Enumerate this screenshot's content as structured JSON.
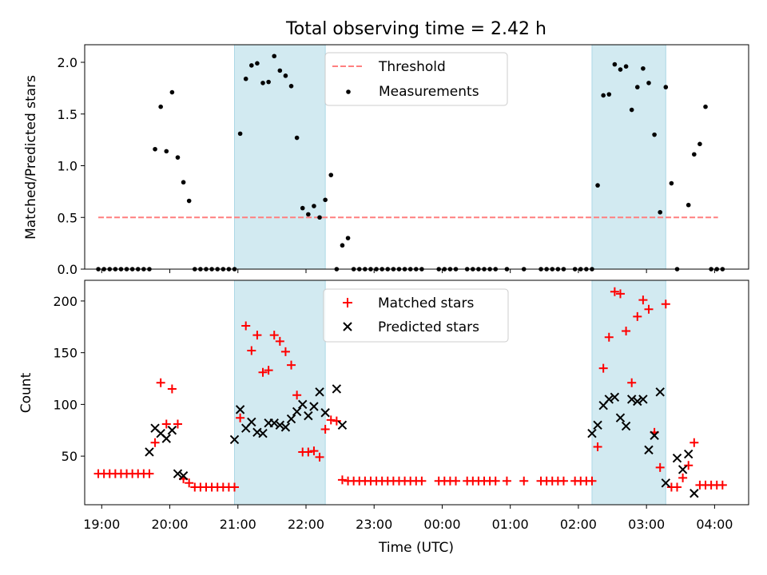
{
  "title": "Total observing time = 2.42 h",
  "colors": {
    "shade": "#add8e6",
    "threshold": "#ff7f7f",
    "matched": "#ff0000",
    "predicted": "#000000",
    "measurement": "#000000"
  },
  "chart_data": [
    {
      "type": "scatter",
      "ylabel": "Matched/Predicted stars",
      "xlabel": "",
      "xlim": [
        "18:45",
        "04:30"
      ],
      "ylim": [
        0,
        2.17
      ],
      "yticks": [
        "0.0",
        "0.5",
        "1.0",
        "1.5",
        "2.0"
      ],
      "shaded_intervals": [
        [
          "20:57",
          "22:17"
        ],
        [
          "02:12",
          "03:17"
        ]
      ],
      "legend": {
        "position": "top-center",
        "entries": [
          "Threshold",
          "Measurements"
        ]
      },
      "threshold": {
        "name": "Threshold",
        "value": 0.5,
        "x": [
          "18:57",
          "04:03"
        ]
      },
      "series": [
        {
          "name": "Measurements",
          "points": [
            [
              "18:57",
              0
            ],
            [
              "19:02",
              0
            ],
            [
              "19:07",
              0
            ],
            [
              "19:12",
              0
            ],
            [
              "19:17",
              0
            ],
            [
              "19:22",
              0
            ],
            [
              "19:27",
              0
            ],
            [
              "19:32",
              0
            ],
            [
              "19:37",
              0
            ],
            [
              "19:42",
              0
            ],
            [
              "19:47",
              1.16
            ],
            [
              "19:52",
              1.57
            ],
            [
              "19:57",
              1.14
            ],
            [
              "20:02",
              1.71
            ],
            [
              "20:07",
              1.08
            ],
            [
              "20:12",
              0.84
            ],
            [
              "20:17",
              0.66
            ],
            [
              "20:22",
              0
            ],
            [
              "20:27",
              0
            ],
            [
              "20:32",
              0
            ],
            [
              "20:37",
              0
            ],
            [
              "20:42",
              0
            ],
            [
              "20:47",
              0
            ],
            [
              "20:52",
              0
            ],
            [
              "20:57",
              0
            ],
            [
              "21:02",
              1.31
            ],
            [
              "21:07",
              1.84
            ],
            [
              "21:12",
              1.97
            ],
            [
              "21:17",
              1.99
            ],
            [
              "21:22",
              1.8
            ],
            [
              "21:27",
              1.81
            ],
            [
              "21:32",
              2.06
            ],
            [
              "21:37",
              1.92
            ],
            [
              "21:42",
              1.87
            ],
            [
              "21:47",
              1.77
            ],
            [
              "21:52",
              1.27
            ],
            [
              "21:57",
              0.59
            ],
            [
              "22:02",
              0.53
            ],
            [
              "22:07",
              0.61
            ],
            [
              "22:12",
              0.5
            ],
            [
              "22:17",
              0.67
            ],
            [
              "22:22",
              0.91
            ],
            [
              "22:27",
              0
            ],
            [
              "22:32",
              0.23
            ],
            [
              "22:37",
              0.3
            ],
            [
              "22:42",
              0
            ],
            [
              "22:47",
              0
            ],
            [
              "22:52",
              0
            ],
            [
              "22:57",
              0
            ],
            [
              "23:02",
              0
            ],
            [
              "23:07",
              0
            ],
            [
              "23:12",
              0
            ],
            [
              "23:17",
              0
            ],
            [
              "23:22",
              0
            ],
            [
              "23:27",
              0
            ],
            [
              "23:32",
              0
            ],
            [
              "23:37",
              0
            ],
            [
              "23:42",
              0
            ],
            [
              "23:57",
              0
            ],
            [
              "00:02",
              0
            ],
            [
              "00:07",
              0
            ],
            [
              "00:12",
              0
            ],
            [
              "00:22",
              0
            ],
            [
              "00:27",
              0
            ],
            [
              "00:32",
              0
            ],
            [
              "00:37",
              0
            ],
            [
              "00:42",
              0
            ],
            [
              "00:47",
              0
            ],
            [
              "00:57",
              0
            ],
            [
              "01:12",
              0
            ],
            [
              "01:27",
              0
            ],
            [
              "01:32",
              0
            ],
            [
              "01:37",
              0
            ],
            [
              "01:42",
              0
            ],
            [
              "01:47",
              0
            ],
            [
              "01:57",
              0
            ],
            [
              "02:02",
              0
            ],
            [
              "02:07",
              0
            ],
            [
              "02:12",
              0
            ],
            [
              "02:17",
              0.81
            ],
            [
              "02:22",
              1.68
            ],
            [
              "02:27",
              1.69
            ],
            [
              "02:32",
              1.98
            ],
            [
              "02:37",
              1.93
            ],
            [
              "02:42",
              1.96
            ],
            [
              "02:47",
              1.54
            ],
            [
              "02:52",
              1.76
            ],
            [
              "02:57",
              1.94
            ],
            [
              "03:02",
              1.8
            ],
            [
              "03:07",
              1.3
            ],
            [
              "03:12",
              0.55
            ],
            [
              "03:17",
              1.76
            ],
            [
              "03:22",
              0.83
            ],
            [
              "03:27",
              0
            ],
            [
              "03:37",
              0.62
            ],
            [
              "03:42",
              1.11
            ],
            [
              "03:47",
              1.21
            ],
            [
              "03:52",
              1.57
            ],
            [
              "03:57",
              0
            ],
            [
              "04:02",
              0
            ],
            [
              "04:07",
              0
            ]
          ]
        }
      ]
    },
    {
      "type": "scatter",
      "ylabel": "Count",
      "xlabel": "Time (UTC)",
      "xlim": [
        "18:45",
        "04:30"
      ],
      "ylim": [
        3,
        220
      ],
      "yticks": [
        "50",
        "100",
        "150",
        "200"
      ],
      "xticks": [
        "19:00",
        "20:00",
        "21:00",
        "22:00",
        "23:00",
        "00:00",
        "01:00",
        "02:00",
        "03:00",
        "04:00"
      ],
      "shaded_intervals": [
        [
          "20:57",
          "22:17"
        ],
        [
          "02:12",
          "03:17"
        ]
      ],
      "legend": {
        "position": "top-center",
        "entries": [
          "Matched stars",
          "Predicted stars"
        ]
      },
      "series": [
        {
          "name": "Matched stars",
          "marker": "plus",
          "points": [
            [
              "18:57",
              33
            ],
            [
              "19:02",
              33
            ],
            [
              "19:07",
              33
            ],
            [
              "19:12",
              33
            ],
            [
              "19:17",
              33
            ],
            [
              "19:22",
              33
            ],
            [
              "19:27",
              33
            ],
            [
              "19:32",
              33
            ],
            [
              "19:37",
              33
            ],
            [
              "19:42",
              33
            ],
            [
              "19:47",
              63
            ],
            [
              "19:52",
              121
            ],
            [
              "19:57",
              81
            ],
            [
              "20:02",
              115
            ],
            [
              "20:07",
              81
            ],
            [
              "20:12",
              28
            ],
            [
              "20:17",
              24
            ],
            [
              "20:22",
              20
            ],
            [
              "20:27",
              20
            ],
            [
              "20:32",
              20
            ],
            [
              "20:37",
              20
            ],
            [
              "20:42",
              20
            ],
            [
              "20:47",
              20
            ],
            [
              "20:52",
              20
            ],
            [
              "20:57",
              20
            ],
            [
              "21:02",
              87
            ],
            [
              "21:07",
              176
            ],
            [
              "21:12",
              152
            ],
            [
              "21:17",
              167
            ],
            [
              "21:22",
              131
            ],
            [
              "21:27",
              133
            ],
            [
              "21:32",
              167
            ],
            [
              "21:37",
              161
            ],
            [
              "21:42",
              151
            ],
            [
              "21:47",
              138
            ],
            [
              "21:52",
              109
            ],
            [
              "21:57",
              54
            ],
            [
              "22:02",
              54
            ],
            [
              "22:07",
              55
            ],
            [
              "22:12",
              49
            ],
            [
              "22:17",
              76
            ],
            [
              "22:22",
              85
            ],
            [
              "22:27",
              84
            ],
            [
              "22:32",
              27
            ],
            [
              "22:37",
              26
            ],
            [
              "22:42",
              26
            ],
            [
              "22:47",
              26
            ],
            [
              "22:52",
              26
            ],
            [
              "22:57",
              26
            ],
            [
              "23:02",
              26
            ],
            [
              "23:07",
              26
            ],
            [
              "23:12",
              26
            ],
            [
              "23:17",
              26
            ],
            [
              "23:22",
              26
            ],
            [
              "23:27",
              26
            ],
            [
              "23:32",
              26
            ],
            [
              "23:37",
              26
            ],
            [
              "23:42",
              26
            ],
            [
              "23:57",
              26
            ],
            [
              "00:02",
              26
            ],
            [
              "00:07",
              26
            ],
            [
              "00:12",
              26
            ],
            [
              "00:22",
              26
            ],
            [
              "00:27",
              26
            ],
            [
              "00:32",
              26
            ],
            [
              "00:37",
              26
            ],
            [
              "00:42",
              26
            ],
            [
              "00:47",
              26
            ],
            [
              "00:57",
              26
            ],
            [
              "01:12",
              26
            ],
            [
              "01:27",
              26
            ],
            [
              "01:32",
              26
            ],
            [
              "01:37",
              26
            ],
            [
              "01:42",
              26
            ],
            [
              "01:47",
              26
            ],
            [
              "01:57",
              26
            ],
            [
              "02:02",
              26
            ],
            [
              "02:07",
              26
            ],
            [
              "02:12",
              26
            ],
            [
              "02:17",
              59
            ],
            [
              "02:22",
              135
            ],
            [
              "02:27",
              165
            ],
            [
              "02:32",
              209
            ],
            [
              "02:37",
              207
            ],
            [
              "02:42",
              171
            ],
            [
              "02:47",
              121
            ],
            [
              "02:52",
              185
            ],
            [
              "02:57",
              201
            ],
            [
              "03:02",
              192
            ],
            [
              "03:07",
              73
            ],
            [
              "03:12",
              39
            ],
            [
              "03:17",
              197
            ],
            [
              "03:22",
              20
            ],
            [
              "03:27",
              20
            ],
            [
              "03:32",
              29
            ],
            [
              "03:37",
              41
            ],
            [
              "03:42",
              63
            ],
            [
              "03:47",
              22
            ],
            [
              "03:52",
              22
            ],
            [
              "03:57",
              22
            ],
            [
              "04:02",
              22
            ],
            [
              "04:07",
              22
            ]
          ]
        },
        {
          "name": "Predicted stars",
          "marker": "cross",
          "points": [
            [
              "19:42",
              54
            ],
            [
              "19:47",
              77
            ],
            [
              "19:52",
              72
            ],
            [
              "19:57",
              67
            ],
            [
              "20:02",
              75
            ],
            [
              "20:07",
              33
            ],
            [
              "20:12",
              31
            ],
            [
              "20:57",
              66
            ],
            [
              "21:02",
              95
            ],
            [
              "21:07",
              77
            ],
            [
              "21:12",
              83
            ],
            [
              "21:17",
              73
            ],
            [
              "21:22",
              72
            ],
            [
              "21:27",
              82
            ],
            [
              "21:32",
              82
            ],
            [
              "21:37",
              80
            ],
            [
              "21:42",
              78
            ],
            [
              "21:47",
              86
            ],
            [
              "21:52",
              93
            ],
            [
              "21:57",
              100
            ],
            [
              "22:02",
              89
            ],
            [
              "22:07",
              98
            ],
            [
              "22:12",
              112
            ],
            [
              "22:17",
              92
            ],
            [
              "22:27",
              115
            ],
            [
              "22:32",
              80
            ],
            [
              "02:12",
              72
            ],
            [
              "02:17",
              80
            ],
            [
              "02:22",
              99
            ],
            [
              "02:27",
              105
            ],
            [
              "02:32",
              107
            ],
            [
              "02:37",
              87
            ],
            [
              "02:42",
              79
            ],
            [
              "02:47",
              105
            ],
            [
              "02:52",
              103
            ],
            [
              "02:57",
              105
            ],
            [
              "03:02",
              56
            ],
            [
              "03:07",
              70
            ],
            [
              "03:12",
              112
            ],
            [
              "03:17",
              24
            ],
            [
              "03:27",
              48
            ],
            [
              "03:32",
              37
            ],
            [
              "03:37",
              52
            ],
            [
              "03:42",
              14
            ]
          ]
        }
      ]
    }
  ]
}
